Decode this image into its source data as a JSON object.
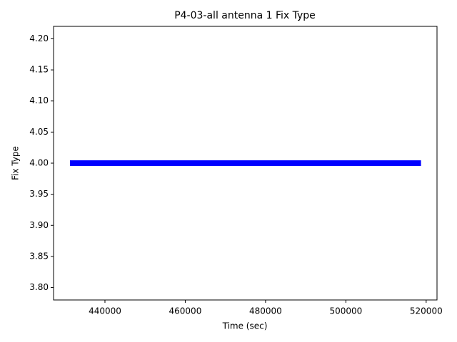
{
  "chart_data": {
    "type": "scatter",
    "title": "P4-03-all antenna 1 Fix Type",
    "x_label": "Time (sec)",
    "y_label": "Fix Type",
    "color": "#0000ff",
    "x": [
      432000,
      434000,
      436000,
      438000,
      440000,
      442000,
      444000,
      446000,
      448000,
      450000,
      452000,
      454000,
      456000,
      458000,
      460000,
      462000,
      464000,
      466000,
      468000,
      470000,
      472000,
      474000,
      476000,
      478000,
      480000,
      482000,
      484000,
      486000,
      488000,
      490000,
      492000,
      494000,
      496000,
      498000,
      500000,
      502000,
      504000,
      506000,
      508000,
      510000,
      512000,
      514000,
      516000,
      518000
    ],
    "values": [
      4,
      4,
      4,
      4,
      4,
      4,
      4,
      4,
      4,
      4,
      4,
      4,
      4,
      4,
      4,
      4,
      4,
      4,
      4,
      4,
      4,
      4,
      4,
      4,
      4,
      4,
      4,
      4,
      4,
      4,
      4,
      4,
      4,
      4,
      4,
      4,
      4,
      4,
      4,
      4,
      4,
      4,
      4,
      4
    ],
    "xlim": [
      427200,
      522700
    ],
    "xticks": [
      440000,
      460000,
      480000,
      500000,
      520000
    ],
    "ylim": [
      3.78,
      4.22
    ],
    "yticks": [
      {
        "value": 3.8,
        "label": "3.80"
      },
      {
        "value": 3.85,
        "label": "3.85"
      },
      {
        "value": 3.9,
        "label": "3.90"
      },
      {
        "value": 3.95,
        "label": "3.95"
      },
      {
        "value": 4.0,
        "label": "4.00"
      },
      {
        "value": 4.05,
        "label": "4.05"
      },
      {
        "value": 4.1,
        "label": "4.10"
      },
      {
        "value": 4.15,
        "label": "4.15"
      },
      {
        "value": 4.2,
        "label": "4.20"
      }
    ]
  }
}
